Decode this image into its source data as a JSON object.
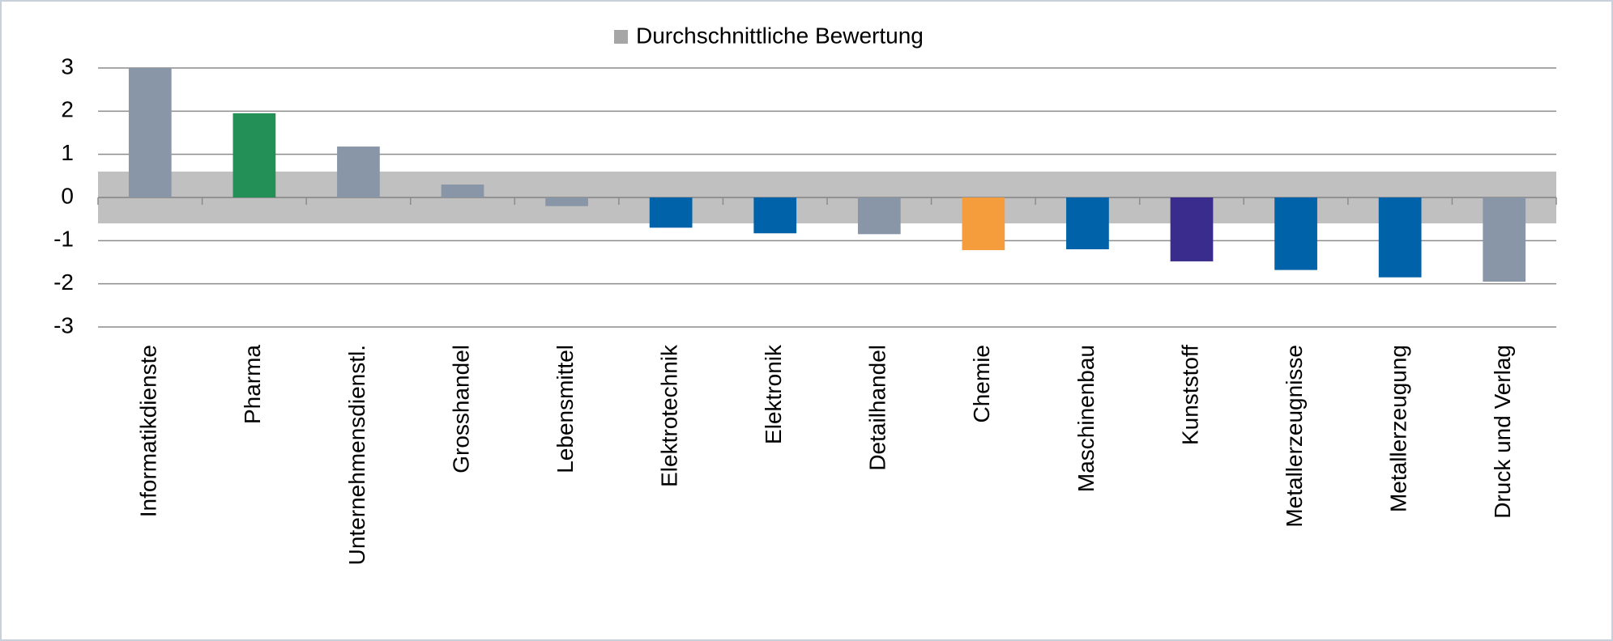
{
  "chart_data": {
    "type": "bar",
    "categories": [
      "Informatikdienste",
      "Pharma",
      "Unternehmensdienstl.",
      "Grosshandel",
      "Lebensmittel",
      "Elektrotechnik",
      "Elektronik",
      "Detailhandel",
      "Chemie",
      "Maschinenbau",
      "Kunststoff",
      "Metallerzeugnisse",
      "Metallerzeugung",
      "Druck und Verlag"
    ],
    "series": [
      {
        "name": "Durchschnittliche Bewertung",
        "color": "#a6a6a6",
        "values": [
          3.0,
          1.95,
          1.18,
          0.3,
          -0.2,
          -0.7,
          -0.83,
          -0.85,
          -1.22,
          -1.2,
          -1.48,
          -1.68,
          -1.85,
          -1.95
        ],
        "colors": [
          "#8896a8",
          "#239058",
          "#8896a8",
          "#8896a8",
          "#8896a8",
          "#0062a8",
          "#0062a8",
          "#8896a8",
          "#f59c3c",
          "#0062a8",
          "#3a2c8c",
          "#0062a8",
          "#0062a8",
          "#8896a8"
        ]
      }
    ],
    "band": [
      -0.6,
      0.6
    ],
    "band_color": "#c0c0c0",
    "ylim": [
      -3,
      3
    ],
    "yticks": [
      -3,
      -2,
      -1,
      0,
      1,
      2,
      3
    ],
    "grid": true,
    "legend": "top"
  }
}
